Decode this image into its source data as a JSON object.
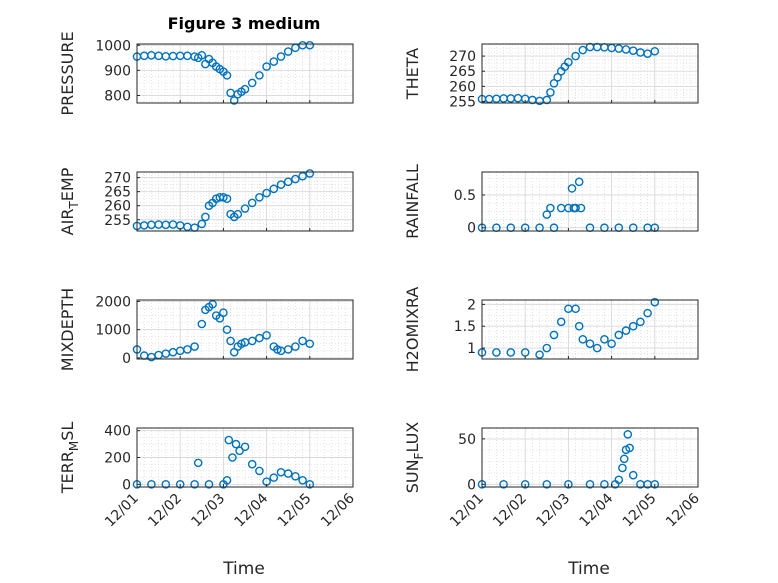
{
  "figure": {
    "title": "Figure 3 medium",
    "xlabel": "Time",
    "x_ticks": [
      "12/01",
      "12/02",
      "12/03",
      "12/04",
      "12/05",
      "12/06"
    ],
    "x_range": [
      "12/01",
      "12/06"
    ],
    "marker_color": "#0072bd",
    "grid_color": "#d9d9d9"
  },
  "chart_data": [
    {
      "type": "scatter",
      "ylabel": "PRESSURE",
      "ylim": [
        770,
        1005
      ],
      "yticks": [
        800,
        900,
        1000
      ],
      "ytick_labels": [
        "800",
        "900",
        "1000"
      ],
      "x": [
        "12/01 00:00",
        "12/01 04:00",
        "12/01 08:00",
        "12/01 12:00",
        "12/01 16:00",
        "12/01 20:00",
        "12/02 00:00",
        "12/02 04:00",
        "12/02 08:00",
        "12/02 10:00",
        "12/02 12:00",
        "12/02 14:00",
        "12/02 16:00",
        "12/02 18:00",
        "12/02 20:00",
        "12/02 22:00",
        "12/03 00:00",
        "12/03 02:00",
        "12/03 04:00",
        "12/03 06:00",
        "12/03 08:00",
        "12/03 10:00",
        "12/03 12:00",
        "12/03 16:00",
        "12/03 20:00",
        "12/04 00:00",
        "12/04 04:00",
        "12/04 08:00",
        "12/04 12:00",
        "12/04 16:00",
        "12/04 20:00",
        "12/05 00:00"
      ],
      "y": [
        955,
        958,
        960,
        958,
        956,
        957,
        958,
        958,
        955,
        950,
        960,
        925,
        945,
        930,
        915,
        905,
        895,
        880,
        810,
        780,
        805,
        815,
        825,
        850,
        880,
        915,
        935,
        955,
        975,
        990,
        1000,
        1000
      ]
    },
    {
      "type": "scatter",
      "ylabel": "THETA",
      "ylim": [
        254.5,
        274
      ],
      "yticks": [
        255,
        260,
        265,
        270
      ],
      "ytick_labels": [
        "255",
        "260",
        "265",
        "270"
      ],
      "x": [
        "12/01 00:00",
        "12/01 04:00",
        "12/01 08:00",
        "12/01 12:00",
        "12/01 16:00",
        "12/01 20:00",
        "12/02 00:00",
        "12/02 04:00",
        "12/02 08:00",
        "12/02 12:00",
        "12/02 14:00",
        "12/02 16:00",
        "12/02 18:00",
        "12/02 20:00",
        "12/02 22:00",
        "12/03 00:00",
        "12/03 04:00",
        "12/03 08:00",
        "12/03 12:00",
        "12/03 16:00",
        "12/03 20:00",
        "12/04 00:00",
        "12/04 04:00",
        "12/04 08:00",
        "12/04 12:00",
        "12/04 16:00",
        "12/04 20:00",
        "12/05 00:00"
      ],
      "y": [
        255.8,
        255.8,
        255.9,
        256,
        256,
        256.1,
        255.9,
        255.5,
        255.2,
        255.5,
        258,
        261,
        263,
        265,
        266.5,
        268,
        270,
        272,
        273,
        273,
        272.9,
        272.7,
        272.5,
        272.2,
        271.8,
        271.2,
        270.8,
        271.6
      ]
    },
    {
      "type": "scatter",
      "ylabel": "AIR_TEMP",
      "ylim": [
        251,
        272
      ],
      "yticks": [
        255,
        260,
        265,
        270
      ],
      "ytick_labels": [
        "255",
        "260",
        "265",
        "270"
      ],
      "x": [
        "12/01 00:00",
        "12/01 04:00",
        "12/01 08:00",
        "12/01 12:00",
        "12/01 16:00",
        "12/01 20:00",
        "12/02 00:00",
        "12/02 04:00",
        "12/02 08:00",
        "12/02 12:00",
        "12/02 14:00",
        "12/02 16:00",
        "12/02 18:00",
        "12/02 20:00",
        "12/02 22:00",
        "12/03 00:00",
        "12/03 02:00",
        "12/03 04:00",
        "12/03 06:00",
        "12/03 08:00",
        "12/03 12:00",
        "12/03 16:00",
        "12/03 20:00",
        "12/04 00:00",
        "12/04 04:00",
        "12/04 08:00",
        "12/04 12:00",
        "12/04 16:00",
        "12/04 20:00",
        "12/05 00:00"
      ],
      "y": [
        252.8,
        253,
        253.2,
        253.3,
        253.2,
        253.3,
        253,
        252.5,
        252.2,
        253.5,
        256,
        260,
        261,
        262.5,
        263,
        263,
        262.5,
        257,
        256,
        257,
        259,
        261,
        263,
        264.5,
        266,
        267.5,
        268.5,
        269.5,
        270.5,
        271.5
      ]
    },
    {
      "type": "scatter",
      "ylabel": "RAINFALL",
      "ylim": [
        -0.05,
        0.85
      ],
      "yticks": [
        0,
        0.5
      ],
      "ytick_labels": [
        "0",
        "0.5"
      ],
      "x": [
        "12/01 00:00",
        "12/01 08:00",
        "12/01 16:00",
        "12/02 00:00",
        "12/02 08:00",
        "12/02 12:00",
        "12/02 14:00",
        "12/02 16:00",
        "12/02 20:00",
        "12/03 00:00",
        "12/03 02:00",
        "12/03 03:00",
        "12/03 04:00",
        "12/03 06:00",
        "12/03 07:00",
        "12/03 12:00",
        "12/03 20:00",
        "12/04 04:00",
        "12/04 12:00",
        "12/04 20:00",
        "12/05 00:00"
      ],
      "y": [
        0,
        0,
        0,
        0,
        0,
        0.2,
        0.3,
        0,
        0.3,
        0.3,
        0.6,
        0.3,
        0.3,
        0.7,
        0.3,
        0,
        0,
        0,
        0,
        0,
        0
      ]
    },
    {
      "type": "scatter",
      "ylabel": "MIXDEPTH",
      "ylim": [
        -40,
        2050
      ],
      "yticks": [
        0,
        1000,
        2000
      ],
      "ytick_labels": [
        "0",
        "1000",
        "2000"
      ],
      "x": [
        "12/01 00:00",
        "12/01 04:00",
        "12/01 08:00",
        "12/01 12:00",
        "12/01 16:00",
        "12/01 20:00",
        "12/02 00:00",
        "12/02 04:00",
        "12/02 08:00",
        "12/02 12:00",
        "12/02 14:00",
        "12/02 16:00",
        "12/02 18:00",
        "12/02 20:00",
        "12/02 22:00",
        "12/03 00:00",
        "12/03 02:00",
        "12/03 04:00",
        "12/03 06:00",
        "12/03 08:00",
        "12/03 10:00",
        "12/03 12:00",
        "12/03 16:00",
        "12/03 20:00",
        "12/04 00:00",
        "12/04 04:00",
        "12/04 06:00",
        "12/04 08:00",
        "12/04 12:00",
        "12/04 16:00",
        "12/04 20:00",
        "12/05 00:00"
      ],
      "y": [
        300,
        80,
        30,
        100,
        150,
        200,
        250,
        300,
        400,
        1200,
        1700,
        1800,
        1900,
        1500,
        1400,
        1600,
        1000,
        600,
        200,
        400,
        500,
        550,
        600,
        700,
        800,
        400,
        300,
        250,
        300,
        400,
        600,
        500
      ]
    },
    {
      "type": "scatter",
      "ylabel": "H2OMIXRA",
      "ylim": [
        0.75,
        2.1
      ],
      "yticks": [
        1,
        1.5,
        2
      ],
      "ytick_labels": [
        "1",
        "1.5",
        "2"
      ],
      "x": [
        "12/01 00:00",
        "12/01 08:00",
        "12/01 16:00",
        "12/02 00:00",
        "12/02 08:00",
        "12/02 12:00",
        "12/02 16:00",
        "12/02 20:00",
        "12/03 00:00",
        "12/03 04:00",
        "12/03 06:00",
        "12/03 08:00",
        "12/03 12:00",
        "12/03 16:00",
        "12/03 20:00",
        "12/04 00:00",
        "12/04 04:00",
        "12/04 08:00",
        "12/04 12:00",
        "12/04 16:00",
        "12/04 20:00",
        "12/05 00:00"
      ],
      "y": [
        0.9,
        0.9,
        0.9,
        0.9,
        0.85,
        1,
        1.3,
        1.6,
        1.9,
        1.9,
        1.5,
        1.2,
        1.1,
        1,
        1.2,
        1.1,
        1.3,
        1.4,
        1.5,
        1.6,
        1.8,
        2.05
      ]
    },
    {
      "type": "scatter",
      "ylabel": "TERR_MSL",
      "ylim": [
        -20,
        420
      ],
      "yticks": [
        0,
        200,
        400
      ],
      "ytick_labels": [
        "0",
        "200",
        "400"
      ],
      "x": [
        "12/01 00:00",
        "12/01 08:00",
        "12/01 16:00",
        "12/02 00:00",
        "12/02 08:00",
        "12/02 10:00",
        "12/02 16:00",
        "12/03 00:00",
        "12/03 02:00",
        "12/03 03:00",
        "12/03 05:00",
        "12/03 07:00",
        "12/03 09:00",
        "12/03 12:00",
        "12/03 16:00",
        "12/03 20:00",
        "12/04 00:00",
        "12/04 04:00",
        "12/04 08:00",
        "12/04 12:00",
        "12/04 16:00",
        "12/04 20:00",
        "12/05 00:00"
      ],
      "y": [
        0,
        0,
        0,
        0,
        0,
        160,
        0,
        0,
        30,
        330,
        200,
        300,
        250,
        280,
        150,
        100,
        20,
        50,
        90,
        80,
        60,
        30,
        0
      ]
    },
    {
      "type": "scatter",
      "ylabel": "SUN_FLUX",
      "ylim": [
        -3,
        62
      ],
      "yticks": [
        0,
        50
      ],
      "ytick_labels": [
        "0",
        "50"
      ],
      "x": [
        "12/01 00:00",
        "12/01 12:00",
        "12/02 00:00",
        "12/02 12:00",
        "12/03 00:00",
        "12/03 12:00",
        "12/03 20:00",
        "12/04 02:00",
        "12/04 04:00",
        "12/04 06:00",
        "12/04 07:00",
        "12/04 08:00",
        "12/04 09:00",
        "12/04 10:00",
        "12/04 12:00",
        "12/04 16:00",
        "12/04 20:00",
        "12/05 00:00"
      ],
      "y": [
        0,
        0,
        0,
        0,
        0,
        0,
        0,
        0,
        5,
        18,
        28,
        38,
        55,
        40,
        10,
        0,
        0,
        0
      ]
    }
  ]
}
